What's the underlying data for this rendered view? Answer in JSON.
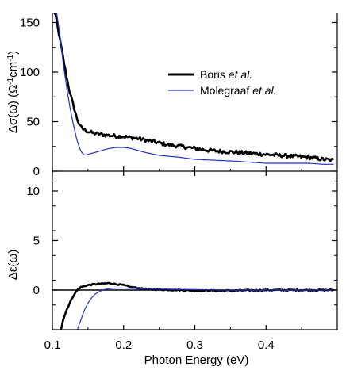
{
  "chart_data": [
    {
      "type": "line",
      "panel": "top",
      "ylabel_html": "Δσ(ω) (Ω<tspan baseline-shift=\"super\" font-size=\"10\">-1</tspan>cm<tspan baseline-shift=\"super\" font-size=\"10\">-1</tspan>)",
      "ylabel_parts": [
        "Δσ(ω) (Ω",
        "-1",
        "cm",
        "-1",
        ")"
      ],
      "xlim": [
        0.1,
        0.5
      ],
      "ylim": [
        0,
        160
      ],
      "yticks": [
        0,
        50,
        100,
        150
      ],
      "legend": {
        "placement": "top-right"
      },
      "series": [
        {
          "name_parts": [
            "Boris ",
            "et al."
          ],
          "color": "#000000",
          "style": "thick-noisy",
          "x": [
            0.1,
            0.105,
            0.11,
            0.115,
            0.12,
            0.125,
            0.13,
            0.135,
            0.14,
            0.15,
            0.16,
            0.18,
            0.2,
            0.22,
            0.24,
            0.26,
            0.28,
            0.3,
            0.32,
            0.34,
            0.36,
            0.38,
            0.4,
            0.42,
            0.44,
            0.46,
            0.48,
            0.495
          ],
          "y": [
            165,
            155,
            135,
            115,
            95,
            78,
            65,
            52,
            44,
            40,
            38,
            36,
            35,
            33,
            30,
            27,
            25,
            23,
            21,
            20,
            19,
            18,
            17,
            16,
            15,
            14,
            12,
            11
          ]
        },
        {
          "name_parts": [
            "Molegraaf ",
            "et al."
          ],
          "color": "#2233cc",
          "style": "thin",
          "x": [
            0.105,
            0.11,
            0.115,
            0.12,
            0.125,
            0.13,
            0.135,
            0.14,
            0.145,
            0.15,
            0.16,
            0.17,
            0.18,
            0.19,
            0.2,
            0.21,
            0.22,
            0.23,
            0.25,
            0.28,
            0.3,
            0.33,
            0.36,
            0.38,
            0.4,
            0.43,
            0.46,
            0.48,
            0.495
          ],
          "y": [
            165,
            140,
            110,
            85,
            63,
            45,
            30,
            20,
            16,
            17,
            19,
            21,
            23,
            24,
            24,
            23,
            21,
            19,
            16,
            14,
            12,
            11,
            10,
            9,
            8,
            8,
            8,
            7,
            7
          ]
        }
      ]
    },
    {
      "type": "line",
      "panel": "bottom",
      "ylabel_parts": [
        "Δε(ω)"
      ],
      "xlabel": "Photon Energy (eV)",
      "xlim": [
        0.1,
        0.5
      ],
      "ylim": [
        -4,
        12
      ],
      "yticks": [
        0,
        5,
        10
      ],
      "xticks": [
        0.1,
        0.2,
        0.3,
        0.4
      ],
      "xtick_labels": [
        "0.1",
        "0.2",
        "0.3",
        "0.4"
      ],
      "zero_line": true,
      "series": [
        {
          "color": "#000000",
          "style": "thick-noisy",
          "x": [
            0.112,
            0.115,
            0.12,
            0.125,
            0.13,
            0.135,
            0.14,
            0.15,
            0.16,
            0.17,
            0.18,
            0.19,
            0.2,
            0.21,
            0.22,
            0.23,
            0.25,
            0.28,
            0.3,
            0.35,
            0.4,
            0.45,
            0.495
          ],
          "y": [
            -4,
            -3,
            -2,
            -1.2,
            -0.5,
            0,
            0.3,
            0.5,
            0.6,
            0.65,
            0.7,
            0.6,
            0.5,
            0.3,
            0.2,
            0.1,
            0.05,
            0.0,
            -0.05,
            -0.05,
            0.0,
            0.0,
            0.0
          ]
        },
        {
          "color": "#2233cc",
          "style": "thin",
          "x": [
            0.135,
            0.14,
            0.145,
            0.15,
            0.155,
            0.16,
            0.17,
            0.18,
            0.19,
            0.2,
            0.22,
            0.25,
            0.3,
            0.35,
            0.4,
            0.45,
            0.495
          ],
          "y": [
            -4,
            -3,
            -2,
            -1.3,
            -0.8,
            -0.4,
            0.0,
            0.15,
            0.2,
            0.2,
            0.15,
            0.1,
            0.05,
            0.0,
            0.0,
            0.0,
            0.0
          ]
        }
      ]
    }
  ]
}
